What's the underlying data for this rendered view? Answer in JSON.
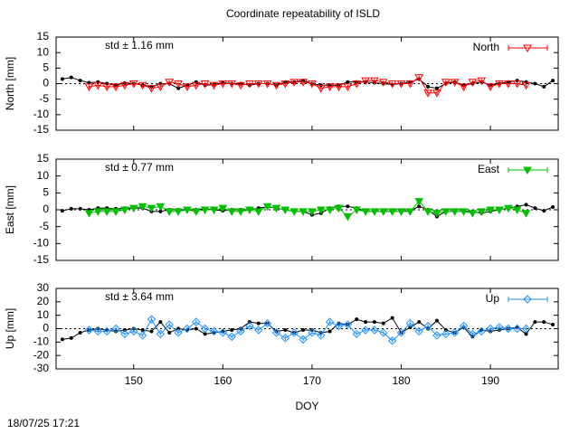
{
  "title": "Coordinate repeatability of ISLD",
  "timestamp": "18/07/25 17:21",
  "chart_data": [
    {
      "type": "line",
      "ylabel": "North [mm]",
      "annotation": "std ± 1.16 mm",
      "xlim": [
        141.3,
        197.6
      ],
      "xticks": [
        150,
        160,
        170,
        180,
        190
      ],
      "ylim": [
        -15,
        15
      ],
      "yticks": [
        -15,
        -10,
        -5,
        0,
        5,
        10,
        15
      ],
      "x": [
        142,
        143,
        144,
        145,
        146,
        147,
        148,
        149,
        150,
        151,
        152,
        153,
        154,
        155,
        156,
        157,
        158,
        159,
        160,
        161,
        162,
        163,
        164,
        165,
        166,
        167,
        168,
        169,
        170,
        171,
        172,
        173,
        174,
        175,
        176,
        177,
        178,
        179,
        180,
        181,
        182,
        183,
        184,
        185,
        186,
        187,
        188,
        189,
        190,
        191,
        192,
        193,
        194,
        195,
        196,
        197
      ],
      "series": [
        {
          "color": "#000000",
          "marker": "dot",
          "values": [
            1.5,
            2,
            1,
            0.3,
            0.5,
            0,
            -0.5,
            0.2,
            0,
            -0.5,
            -1,
            0,
            0,
            -1.5,
            -0.5,
            0.5,
            -0.5,
            -0.3,
            0.3,
            0,
            0,
            -0.5,
            0,
            0,
            -0.5,
            0.5,
            0.5,
            1,
            0,
            -0.5,
            -0.5,
            -0.5,
            0.5,
            0.5,
            0.5,
            0.3,
            0,
            -0.3,
            0,
            0.5,
            1.5,
            -1,
            -1.5,
            0,
            0.5,
            -0.5,
            0,
            0.5,
            -0.5,
            0,
            0.5,
            1,
            0.5,
            0,
            -1,
            1
          ]
        },
        {
          "name": "North",
          "color": "#ff0000",
          "marker": "triangle-down-open",
          "values": [
            null,
            null,
            null,
            -1,
            -0.5,
            -1,
            -1,
            -0.5,
            0,
            -0.5,
            -1.5,
            -1,
            0.5,
            0,
            -1,
            -0.5,
            0,
            -0.5,
            0,
            0,
            -0.5,
            0,
            0,
            0,
            -0.5,
            0,
            0.5,
            0.5,
            0,
            -1.5,
            -1,
            -1,
            -1,
            0,
            1,
            1,
            0.5,
            0,
            0,
            0,
            2,
            -3,
            -3,
            0.5,
            0.5,
            -1,
            0.5,
            1,
            -1,
            0,
            0,
            0,
            -0.5,
            null,
            null,
            null
          ]
        }
      ]
    },
    {
      "type": "line",
      "ylabel": "East [mm]",
      "annotation": "std ± 0.77 mm",
      "xlim": [
        141.3,
        197.6
      ],
      "xticks": [
        150,
        160,
        170,
        180,
        190
      ],
      "ylim": [
        -15,
        15
      ],
      "yticks": [
        -15,
        -10,
        -5,
        0,
        5,
        10,
        15
      ],
      "x": [
        142,
        143,
        144,
        145,
        146,
        147,
        148,
        149,
        150,
        151,
        152,
        153,
        154,
        155,
        156,
        157,
        158,
        159,
        160,
        161,
        162,
        163,
        164,
        165,
        166,
        167,
        168,
        169,
        170,
        171,
        172,
        173,
        174,
        175,
        176,
        177,
        178,
        179,
        180,
        181,
        182,
        183,
        184,
        185,
        186,
        187,
        188,
        189,
        190,
        191,
        192,
        193,
        194,
        195,
        196,
        197
      ],
      "series": [
        {
          "color": "#000000",
          "marker": "dot",
          "values": [
            -0.3,
            0.3,
            0.3,
            0,
            0.5,
            0.5,
            0.3,
            0.5,
            0.5,
            0.5,
            -0.5,
            -0.5,
            0,
            0,
            0,
            0,
            0.3,
            0,
            -0.3,
            0,
            0,
            0,
            0.5,
            0.8,
            0.5,
            0,
            -0.5,
            -0.5,
            -1.5,
            -1,
            0.5,
            1,
            1,
            0.5,
            -0.5,
            -0.5,
            -0.5,
            -0.5,
            -0.5,
            -0.3,
            1,
            0,
            -2,
            -0.5,
            -0.5,
            -0.5,
            -0.5,
            -1,
            -0.5,
            0,
            0.5,
            1,
            1.5,
            0.5,
            -0.3,
            0.8
          ]
        },
        {
          "name": "East",
          "color": "#00c000",
          "marker": "triangle-down-filled",
          "values": [
            null,
            null,
            null,
            -1,
            -0.5,
            -0.5,
            -0.5,
            0,
            0.5,
            1,
            0.5,
            1,
            -0.5,
            -0.5,
            0,
            -0.5,
            0,
            0,
            0.5,
            -0.5,
            -0.5,
            0,
            -0.5,
            1,
            0.5,
            0,
            -0.5,
            -0.5,
            -0.5,
            0,
            0,
            0.5,
            -2,
            0,
            -0.5,
            -0.5,
            -0.5,
            -0.5,
            -0.5,
            -0.5,
            2.5,
            -0.5,
            -1,
            -0.5,
            -0.5,
            -0.5,
            -1,
            -0.5,
            0,
            0,
            0.5,
            0,
            -1,
            null,
            null,
            null
          ]
        }
      ]
    },
    {
      "type": "line",
      "ylabel": "Up [mm]",
      "xlabel": "DOY",
      "annotation": "std ± 3.64 mm",
      "xlim": [
        141.3,
        197.6
      ],
      "xticks": [
        150,
        160,
        170,
        180,
        190
      ],
      "ylim": [
        -30,
        30
      ],
      "yticks": [
        -30,
        -20,
        -10,
        0,
        10,
        20,
        30
      ],
      "x": [
        142,
        143,
        144,
        145,
        146,
        147,
        148,
        149,
        150,
        151,
        152,
        153,
        154,
        155,
        156,
        157,
        158,
        159,
        160,
        161,
        162,
        163,
        164,
        165,
        166,
        167,
        168,
        169,
        170,
        171,
        172,
        173,
        174,
        175,
        176,
        177,
        178,
        179,
        180,
        181,
        182,
        183,
        184,
        185,
        186,
        187,
        188,
        189,
        190,
        191,
        192,
        193,
        194,
        195,
        196,
        197
      ],
      "series": [
        {
          "color": "#000000",
          "marker": "dot",
          "values": [
            -8,
            -7,
            -3,
            -1,
            0,
            -1,
            -2,
            -1,
            0,
            -1,
            -2,
            5,
            -3,
            0,
            -1,
            0,
            -4,
            -3,
            -2,
            -1,
            0,
            5,
            4,
            4,
            -2,
            -1,
            -3,
            -1,
            -1,
            -3,
            -2,
            4,
            3,
            7,
            5,
            5,
            4,
            8,
            -3,
            1,
            5,
            0,
            6,
            -1,
            -3,
            1,
            -6,
            -1,
            -2,
            -1,
            0,
            1,
            -4,
            5,
            5,
            3
          ]
        },
        {
          "name": "Up",
          "color": "#1e90ff",
          "marker": "diamond-open",
          "values": [
            null,
            null,
            null,
            -1,
            -2,
            -2,
            0,
            -4,
            -2,
            -5,
            7,
            -4,
            3,
            -3,
            0,
            5,
            0,
            -2,
            -3,
            -6,
            -2,
            2,
            -1,
            4,
            -3,
            -7,
            -3,
            -8,
            -3,
            -5,
            5,
            2,
            3,
            -4,
            -1,
            -1,
            -3,
            -9,
            -3,
            4,
            -2,
            2,
            -5,
            -4,
            -3,
            2,
            -4,
            -2,
            0,
            1,
            0,
            0,
            0,
            null,
            null,
            null
          ]
        }
      ]
    }
  ]
}
